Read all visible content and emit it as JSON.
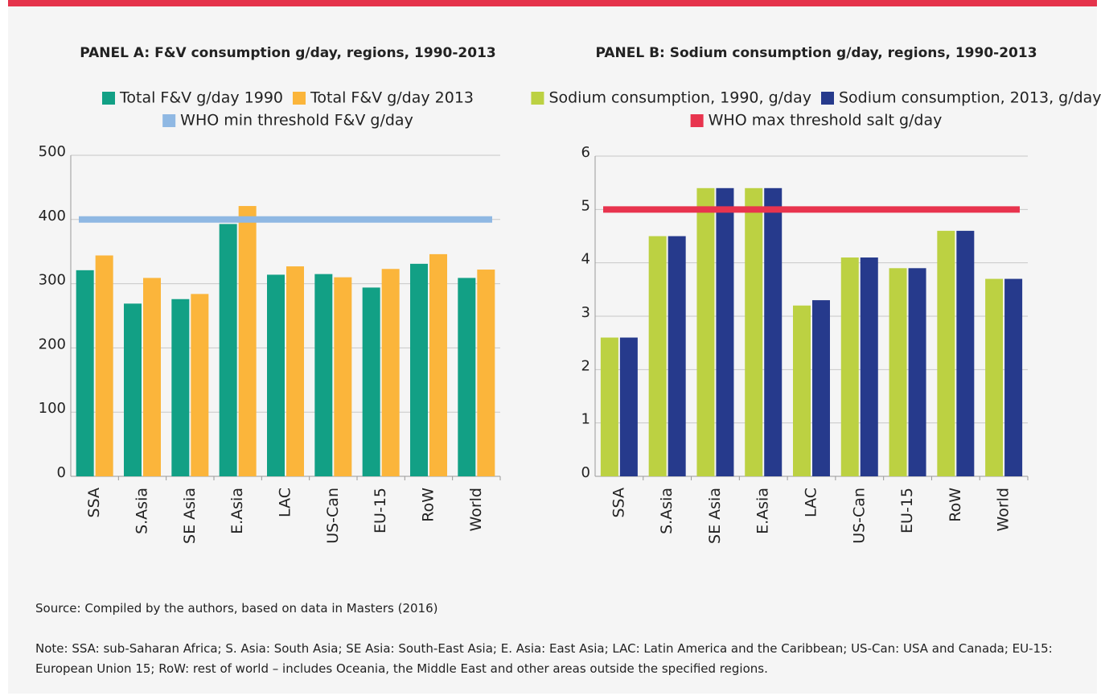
{
  "chart_data": [
    {
      "type": "bar",
      "title": "PANEL A: F&V consumption g/day, regions, 1990-2013",
      "categories": [
        "SSA",
        "S.Asia",
        "SE Asia",
        "E.Asia",
        "LAC",
        "US-Can",
        "EU-15",
        "RoW",
        "World"
      ],
      "series": [
        {
          "name": "Total F&V g/day 1990",
          "color": "#12a085",
          "values": [
            321,
            269,
            276,
            393,
            314,
            315,
            294,
            331,
            309
          ]
        },
        {
          "name": "Total F&V g/day 2013",
          "color": "#fbb53b",
          "values": [
            344,
            309,
            284,
            421,
            327,
            310,
            323,
            346,
            322
          ]
        }
      ],
      "threshold": {
        "name": "WHO min threshold F&V g/day",
        "color": "#8fb8e3",
        "value": 400
      },
      "ylim": [
        0,
        500
      ],
      "yticks": [
        0,
        100,
        200,
        300,
        400,
        500
      ],
      "grid": true
    },
    {
      "type": "bar",
      "title": "PANEL B: Sodium consumption g/day, regions, 1990-2013",
      "categories": [
        "SSA",
        "S.Asia",
        "SE Asia",
        "E.Asia",
        "LAC",
        "US-Can",
        "EU-15",
        "RoW",
        "World"
      ],
      "series": [
        {
          "name": "Sodium consumption, 1990, g/day",
          "color": "#bcd142",
          "values": [
            2.6,
            4.5,
            5.4,
            5.4,
            3.2,
            4.1,
            3.9,
            4.6,
            3.7
          ]
        },
        {
          "name": "Sodium consumption, 2013, g/day",
          "color": "#263a8c",
          "values": [
            2.6,
            4.5,
            5.4,
            5.4,
            3.3,
            4.1,
            3.9,
            4.6,
            3.7
          ]
        }
      ],
      "threshold": {
        "name": "WHO max threshold salt g/day",
        "color": "#e8344e",
        "value": 5
      },
      "ylim": [
        0,
        6
      ],
      "yticks": [
        0,
        1,
        2,
        3,
        4,
        5,
        6
      ],
      "grid": true
    }
  ],
  "source": "Source: Compiled by the authors, based on data in Masters (2016)",
  "note": "Note: SSA: sub-Saharan Africa; S. Asia: South Asia; SE Asia: South-East Asia; E. Asia: East Asia; LAC: Latin America and the Caribbean; US-Can: USA and Canada; EU-15: European Union 15; RoW: rest of world – includes Oceania, the Middle East and other areas outside the specified regions."
}
